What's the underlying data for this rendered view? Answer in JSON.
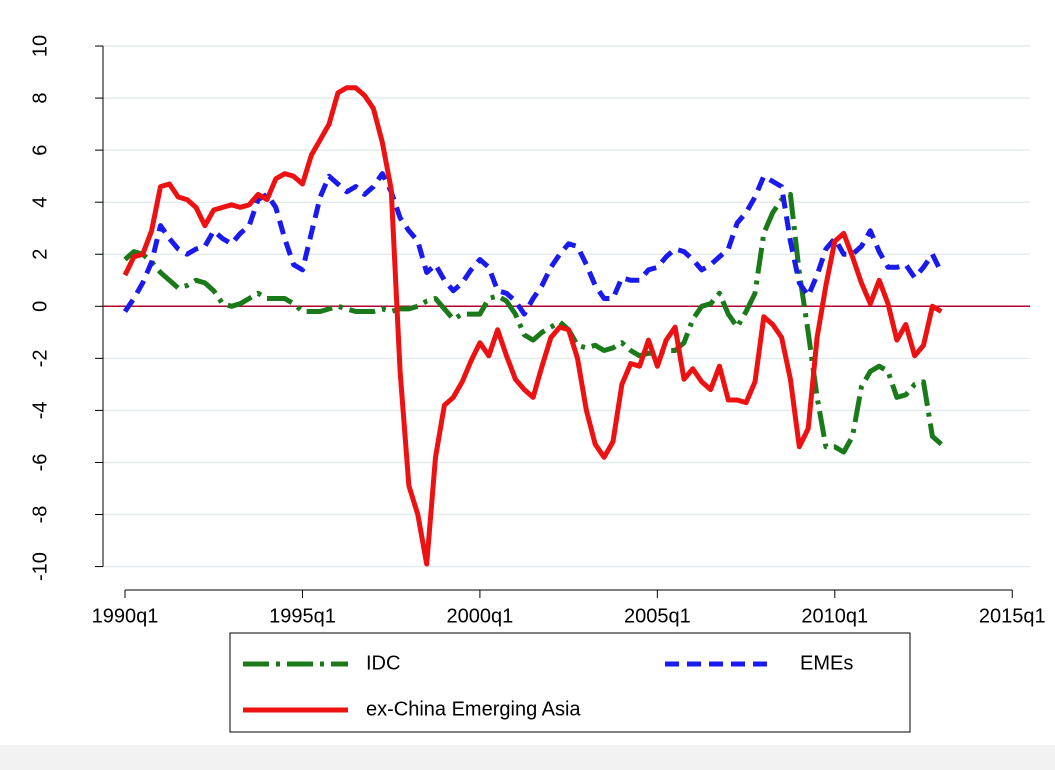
{
  "chart_data": {
    "type": "line",
    "x": [
      1990,
      1990.25,
      1990.5,
      1990.75,
      1991,
      1991.25,
      1991.5,
      1991.75,
      1992,
      1992.25,
      1992.5,
      1992.75,
      1993,
      1993.25,
      1993.5,
      1993.75,
      1994,
      1994.25,
      1994.5,
      1994.75,
      1995,
      1995.25,
      1995.5,
      1995.75,
      1996,
      1996.25,
      1996.5,
      1996.75,
      1997,
      1997.25,
      1997.5,
      1997.75,
      1998,
      1998.25,
      1998.5,
      1998.75,
      1999,
      1999.25,
      1999.5,
      1999.75,
      2000,
      2000.25,
      2000.5,
      2000.75,
      2001,
      2001.25,
      2001.5,
      2001.75,
      2002,
      2002.25,
      2002.5,
      2002.75,
      2003,
      2003.25,
      2003.5,
      2003.75,
      2004,
      2004.25,
      2004.5,
      2004.75,
      2005,
      2005.25,
      2005.5,
      2005.75,
      2006,
      2006.25,
      2006.5,
      2006.75,
      2007,
      2007.25,
      2007.5,
      2007.75,
      2008,
      2008.25,
      2008.5,
      2008.75,
      2009,
      2009.25,
      2009.5,
      2009.75,
      2010,
      2010.25,
      2010.5,
      2010.75,
      2011,
      2011.25,
      2011.5,
      2011.75,
      2012,
      2012.25,
      2012.5,
      2012.75,
      2013
    ],
    "series": [
      {
        "name": "IDC",
        "color": "#1a7a1a",
        "dash": "dash-dot",
        "values": [
          1.8,
          2.1,
          2.0,
          1.7,
          1.3,
          1.0,
          0.7,
          0.8,
          1.0,
          0.9,
          0.6,
          0.1,
          0.0,
          0.1,
          0.3,
          0.5,
          0.3,
          0.3,
          0.3,
          0.1,
          -0.2,
          -0.2,
          -0.2,
          -0.1,
          0.0,
          -0.1,
          -0.2,
          -0.2,
          -0.2,
          -0.1,
          -0.2,
          -0.1,
          -0.1,
          0.0,
          0.2,
          0.3,
          -0.1,
          -0.5,
          -0.3,
          -0.3,
          -0.3,
          0.3,
          0.4,
          0.2,
          -0.3,
          -1.1,
          -1.3,
          -1.0,
          -0.8,
          -0.6,
          -0.9,
          -1.5,
          -1.6,
          -1.5,
          -1.7,
          -1.6,
          -1.4,
          -1.7,
          -1.9,
          -1.8,
          -1.8,
          -1.7,
          -1.7,
          -1.4,
          -0.5,
          0.0,
          0.1,
          0.5,
          -0.3,
          -0.8,
          -0.2,
          0.5,
          2.8,
          3.6,
          4.1,
          4.3,
          1.3,
          -1.0,
          -3.5,
          -5.4,
          -5.4,
          -5.6,
          -5.0,
          -3.1,
          -2.5,
          -2.3,
          -2.5,
          -3.5,
          -3.4,
          -3.0,
          -2.9,
          -5.0,
          -5.3
        ]
      },
      {
        "name": "EMEs",
        "color": "#1a1aee",
        "dash": "dash",
        "values": [
          -0.2,
          0.3,
          0.9,
          1.7,
          3.1,
          2.6,
          2.2,
          2.0,
          2.2,
          2.3,
          2.9,
          2.6,
          2.4,
          2.8,
          3.1,
          4.1,
          4.3,
          3.8,
          2.6,
          1.6,
          1.4,
          2.8,
          4.2,
          5.0,
          4.7,
          4.4,
          4.6,
          4.3,
          4.6,
          5.1,
          4.4,
          3.4,
          2.9,
          2.5,
          1.3,
          1.6,
          1.0,
          0.6,
          0.9,
          1.4,
          1.8,
          1.5,
          0.6,
          0.5,
          0.2,
          -0.3,
          0.3,
          0.8,
          1.5,
          2.0,
          2.4,
          2.3,
          1.6,
          0.8,
          0.3,
          0.3,
          1.1,
          1.0,
          1.0,
          1.4,
          1.5,
          1.9,
          2.2,
          2.1,
          1.8,
          1.4,
          1.6,
          1.9,
          2.2,
          3.2,
          3.6,
          4.2,
          5.0,
          4.8,
          4.6,
          2.5,
          0.9,
          0.4,
          1.2,
          2.2,
          2.6,
          2.0,
          2.0,
          2.3,
          2.9,
          2.1,
          1.5,
          1.5,
          1.6,
          1.1,
          1.5,
          2.0,
          1.3
        ]
      },
      {
        "name": "ex-China Emerging Asia",
        "color": "#ee1111",
        "dash": "solid",
        "values": [
          1.2,
          1.9,
          2.0,
          2.9,
          4.6,
          4.7,
          4.2,
          4.1,
          3.8,
          3.1,
          3.7,
          3.8,
          3.9,
          3.8,
          3.9,
          4.3,
          4.1,
          4.9,
          5.1,
          5.0,
          4.7,
          5.8,
          6.4,
          7.0,
          8.2,
          8.4,
          8.4,
          8.1,
          7.6,
          6.3,
          4.5,
          -2.5,
          -6.9,
          -8.0,
          -9.9,
          -5.8,
          -3.8,
          -3.5,
          -2.9,
          -2.1,
          -1.4,
          -1.9,
          -0.9,
          -1.9,
          -2.8,
          -3.2,
          -3.5,
          -2.3,
          -1.2,
          -0.8,
          -0.9,
          -2.0,
          -4.0,
          -5.3,
          -5.8,
          -5.2,
          -3.0,
          -2.2,
          -2.3,
          -1.3,
          -2.3,
          -1.3,
          -0.8,
          -2.8,
          -2.4,
          -2.9,
          -3.2,
          -2.3,
          -3.6,
          -3.6,
          -3.7,
          -2.9,
          -0.4,
          -0.7,
          -1.2,
          -2.8,
          -5.4,
          -4.7,
          -1.2,
          0.8,
          2.5,
          2.8,
          1.9,
          0.9,
          0.1,
          1.0,
          0.1,
          -1.3,
          -0.7,
          -1.9,
          -1.5,
          0.0,
          -0.2
        ]
      }
    ],
    "xlim": [
      1989.38,
      2015.5
    ],
    "xticks": [
      {
        "value": 1990,
        "label": "1990q1"
      },
      {
        "value": 1995,
        "label": "1995q1"
      },
      {
        "value": 2000,
        "label": "2000q1"
      },
      {
        "value": 2005,
        "label": "2005q1"
      },
      {
        "value": 2010,
        "label": "2010q1"
      },
      {
        "value": 2015,
        "label": "2015q1"
      }
    ],
    "ylim": [
      -10.9,
      11
    ],
    "yticks": [
      -10,
      -8,
      -6,
      -4,
      -2,
      0,
      2,
      4,
      6,
      8,
      10
    ],
    "grid": true,
    "reference_line": {
      "value": 0,
      "color": "#b00030"
    },
    "legend": "bottom"
  }
}
